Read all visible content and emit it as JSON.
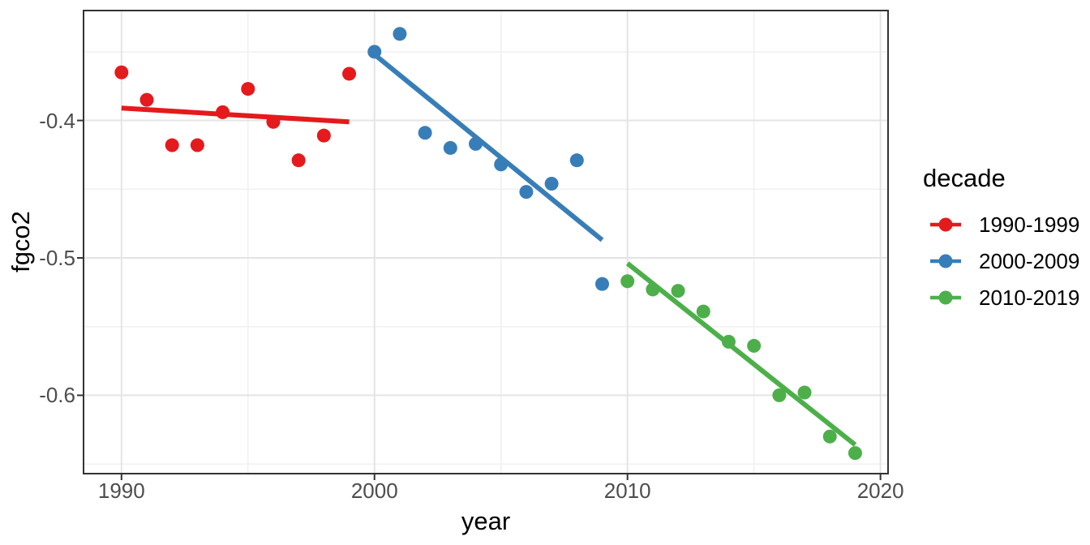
{
  "chart_data": {
    "type": "scatter",
    "xlabel": "year",
    "ylabel": "fgco2",
    "legend_title": "decade",
    "legend_position": "right",
    "grid": true,
    "xlim": [
      1988.5,
      2020.3
    ],
    "ylim": [
      -0.657,
      -0.32
    ],
    "x_ticks": [
      {
        "value": 1990,
        "label": "1990"
      },
      {
        "value": 2000,
        "label": "2000"
      },
      {
        "value": 2010,
        "label": "2010"
      },
      {
        "value": 2020,
        "label": "2020"
      }
    ],
    "y_ticks": [
      {
        "value": -0.4,
        "label": "-0.4"
      },
      {
        "value": -0.5,
        "label": "-0.5"
      },
      {
        "value": -0.6,
        "label": "-0.6"
      }
    ],
    "x_minor": [
      1995,
      2005,
      2015
    ],
    "y_minor": [
      -0.35,
      -0.45,
      -0.55,
      -0.65
    ],
    "series": [
      {
        "name": "1990-1999",
        "color": "#E41A1C",
        "x": [
          1990,
          1991,
          1992,
          1993,
          1994,
          1995,
          1996,
          1997,
          1998,
          1999
        ],
        "y": [
          -0.365,
          -0.385,
          -0.418,
          -0.418,
          -0.394,
          -0.377,
          -0.401,
          -0.429,
          -0.411,
          -0.366
        ],
        "trend": {
          "x1": 1990,
          "y1": -0.391,
          "x2": 1999,
          "y2": -0.401
        }
      },
      {
        "name": "2000-2009",
        "color": "#377EB8",
        "x": [
          2000,
          2001,
          2002,
          2003,
          2004,
          2005,
          2006,
          2007,
          2008,
          2009
        ],
        "y": [
          -0.35,
          -0.337,
          -0.409,
          -0.42,
          -0.417,
          -0.432,
          -0.452,
          -0.446,
          -0.429,
          -0.519
        ],
        "trend": {
          "x1": 2000,
          "y1": -0.352,
          "x2": 2009,
          "y2": -0.487
        }
      },
      {
        "name": "2010-2019",
        "color": "#4DAF4A",
        "x": [
          2010,
          2011,
          2012,
          2013,
          2014,
          2015,
          2016,
          2017,
          2018,
          2019
        ],
        "y": [
          -0.517,
          -0.523,
          -0.524,
          -0.539,
          -0.561,
          -0.564,
          -0.6,
          -0.598,
          -0.63,
          -0.642
        ],
        "trend": {
          "x1": 2010,
          "y1": -0.504,
          "x2": 2019,
          "y2": -0.636
        }
      }
    ],
    "style": {
      "panel_bg": "#FFFFFF",
      "grid_major": "#E4E4E4",
      "grid_minor": "#F0F0F0",
      "border": "#333333",
      "tick": "#333333",
      "tick_label_color": "#4D4D4D",
      "title_color": "#000000"
    }
  }
}
